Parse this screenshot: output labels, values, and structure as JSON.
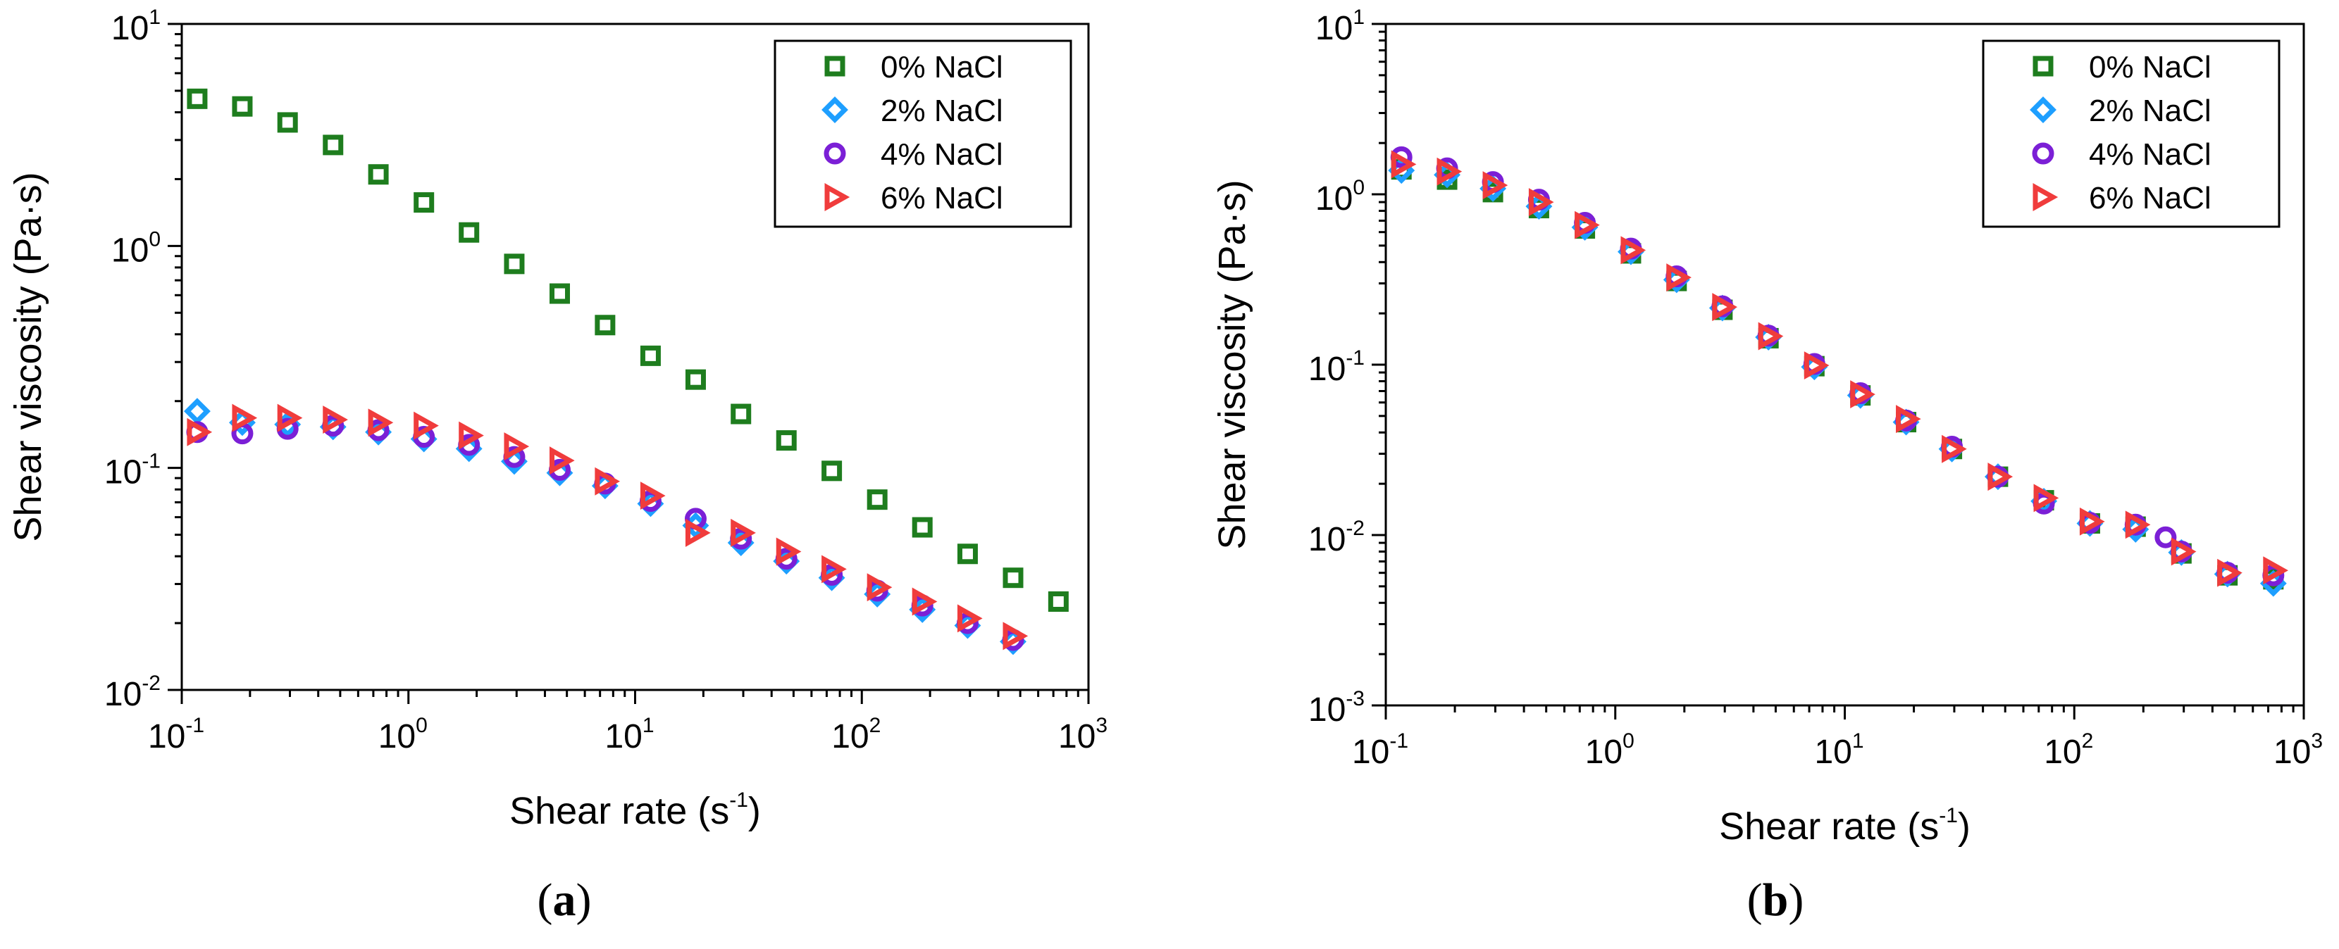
{
  "chart_data": [
    {
      "type": "scatter",
      "panel_label": "a",
      "xlabel": "Shear rate (s",
      "xlabel_sup": "-1",
      "xlabel_end": ")",
      "ylabel": "Shear viscosity (Pa·s)",
      "x_scale": "log",
      "y_scale": "log",
      "xlim": [
        0.1,
        1000
      ],
      "ylim": [
        0.01,
        10
      ],
      "x_ticks": [
        {
          "base": "10",
          "exp": "-1",
          "value": 0.1
        },
        {
          "base": "10",
          "exp": "0",
          "value": 1
        },
        {
          "base": "10",
          "exp": "1",
          "value": 10
        },
        {
          "base": "10",
          "exp": "2",
          "value": 100
        },
        {
          "base": "10",
          "exp": "3",
          "value": 1000
        }
      ],
      "y_ticks": [
        {
          "base": "10",
          "exp": "-2",
          "value": 0.01
        },
        {
          "base": "10",
          "exp": "-1",
          "value": 0.1
        },
        {
          "base": "10",
          "exp": "0",
          "value": 1
        },
        {
          "base": "10",
          "exp": "1",
          "value": 10
        }
      ],
      "grid": false,
      "legend_position": "top-right",
      "series": [
        {
          "name": "0% NaCl",
          "marker": "square",
          "color": "#1e7d1e",
          "x": [
            0.117,
            0.185,
            0.293,
            0.465,
            0.737,
            1.17,
            1.85,
            2.93,
            4.65,
            7.37,
            11.7,
            18.5,
            29.3,
            46.5,
            73.7,
            117,
            185,
            293,
            465,
            737
          ],
          "y": [
            4.6,
            4.25,
            3.6,
            2.85,
            2.1,
            1.57,
            1.15,
            0.83,
            0.61,
            0.44,
            0.32,
            0.25,
            0.175,
            0.133,
            0.097,
            0.072,
            0.054,
            0.041,
            0.032,
            0.025
          ]
        },
        {
          "name": "2% NaCl",
          "marker": "diamond",
          "color": "#1e9fff",
          "x": [
            0.117,
            0.185,
            0.293,
            0.465,
            0.737,
            1.17,
            1.85,
            2.93,
            4.65,
            7.37,
            11.7,
            18.5,
            29.3,
            46.5,
            73.7,
            117,
            185,
            293,
            465
          ],
          "y": [
            0.18,
            0.16,
            0.157,
            0.153,
            0.145,
            0.135,
            0.122,
            0.107,
            0.095,
            0.083,
            0.069,
            0.055,
            0.046,
            0.038,
            0.032,
            0.027,
            0.023,
            0.0195,
            0.0165
          ]
        },
        {
          "name": "4% NaCl",
          "marker": "circle",
          "color": "#7b1fd6",
          "x": [
            0.117,
            0.185,
            0.293,
            0.465,
            0.737,
            1.17,
            1.85,
            2.93,
            4.65,
            7.37,
            11.7,
            18.5,
            29.3,
            46.5,
            73.7,
            117,
            185,
            293,
            465
          ],
          "y": [
            0.145,
            0.143,
            0.15,
            0.155,
            0.148,
            0.138,
            0.127,
            0.112,
            0.098,
            0.085,
            0.071,
            0.059,
            0.048,
            0.039,
            0.033,
            0.028,
            0.024,
            0.02,
            0.0168
          ]
        },
        {
          "name": "6% NaCl",
          "marker": "triangle-right",
          "color": "#f03c3c",
          "x": [
            0.117,
            0.185,
            0.293,
            0.465,
            0.737,
            1.17,
            1.85,
            2.93,
            4.65,
            7.37,
            11.7,
            18.5,
            29.3,
            46.5,
            73.7,
            117,
            185,
            293,
            465
          ],
          "y": [
            0.145,
            0.168,
            0.168,
            0.165,
            0.16,
            0.155,
            0.14,
            0.125,
            0.108,
            0.087,
            0.075,
            0.051,
            0.051,
            0.042,
            0.035,
            0.029,
            0.025,
            0.021,
            0.0175
          ]
        }
      ]
    },
    {
      "type": "scatter",
      "panel_label": "b",
      "xlabel": "Shear rate (s",
      "xlabel_sup": "-1",
      "xlabel_end": ")",
      "ylabel": "Shear viscosity (Pa·s)",
      "x_scale": "log",
      "y_scale": "log",
      "xlim": [
        0.1,
        1000
      ],
      "ylim": [
        0.001,
        10
      ],
      "x_ticks": [
        {
          "base": "10",
          "exp": "-1",
          "value": 0.1
        },
        {
          "base": "10",
          "exp": "0",
          "value": 1
        },
        {
          "base": "10",
          "exp": "1",
          "value": 10
        },
        {
          "base": "10",
          "exp": "2",
          "value": 100
        },
        {
          "base": "10",
          "exp": "3",
          "value": 1000
        }
      ],
      "y_ticks": [
        {
          "base": "10",
          "exp": "-3",
          "value": 0.001
        },
        {
          "base": "10",
          "exp": "-2",
          "value": 0.01
        },
        {
          "base": "10",
          "exp": "-1",
          "value": 0.1
        },
        {
          "base": "10",
          "exp": "0",
          "value": 1
        },
        {
          "base": "10",
          "exp": "1",
          "value": 10
        }
      ],
      "grid": false,
      "legend_position": "top-right",
      "series": [
        {
          "name": "0% NaCl",
          "marker": "square",
          "color": "#1e7d1e",
          "x": [
            0.117,
            0.185,
            0.293,
            0.465,
            0.737,
            1.17,
            1.85,
            2.93,
            4.65,
            7.37,
            11.7,
            18.5,
            29.3,
            46.5,
            73.7,
            117,
            185,
            293,
            465,
            737
          ],
          "y": [
            1.4,
            1.22,
            1.03,
            0.83,
            0.63,
            0.45,
            0.31,
            0.21,
            0.143,
            0.098,
            0.066,
            0.046,
            0.032,
            0.022,
            0.016,
            0.0117,
            0.0112,
            0.0078,
            0.0058,
            0.0055
          ]
        },
        {
          "name": "2% NaCl",
          "marker": "diamond",
          "color": "#1e9fff",
          "x": [
            0.117,
            0.185,
            0.293,
            0.465,
            0.737,
            1.17,
            1.85,
            2.93,
            4.65,
            7.37,
            11.7,
            18.5,
            29.3,
            46.5,
            73.7,
            117,
            185,
            293,
            465,
            737
          ],
          "y": [
            1.38,
            1.3,
            1.08,
            0.85,
            0.64,
            0.46,
            0.315,
            0.215,
            0.145,
            0.097,
            0.066,
            0.046,
            0.032,
            0.022,
            0.0158,
            0.0117,
            0.0108,
            0.0079,
            0.0059,
            0.0052
          ]
        },
        {
          "name": "4% NaCl",
          "marker": "circle",
          "color": "#7b1fd6",
          "x": [
            0.117,
            0.185,
            0.293,
            0.465,
            0.737,
            1.17,
            1.85,
            2.93,
            4.65,
            7.37,
            11.7,
            18.5,
            29.3,
            46.5,
            73.7,
            117,
            185,
            250,
            293,
            465,
            737
          ],
          "y": [
            1.65,
            1.42,
            1.18,
            0.93,
            0.68,
            0.48,
            0.33,
            0.22,
            0.148,
            0.101,
            0.068,
            0.047,
            0.033,
            0.022,
            0.0153,
            0.0118,
            0.0115,
            0.0097,
            0.008,
            0.006,
            0.0058
          ]
        },
        {
          "name": "6% NaCl",
          "marker": "triangle-right",
          "color": "#f03c3c",
          "x": [
            0.117,
            0.185,
            0.293,
            0.465,
            0.737,
            1.17,
            1.85,
            2.93,
            4.65,
            7.37,
            11.7,
            18.5,
            29.3,
            46.5,
            73.7,
            117,
            185,
            293,
            465,
            737
          ],
          "y": [
            1.5,
            1.36,
            1.13,
            0.9,
            0.66,
            0.47,
            0.325,
            0.218,
            0.147,
            0.099,
            0.067,
            0.048,
            0.032,
            0.022,
            0.0165,
            0.012,
            0.0115,
            0.008,
            0.006,
            0.0062
          ]
        }
      ]
    }
  ]
}
